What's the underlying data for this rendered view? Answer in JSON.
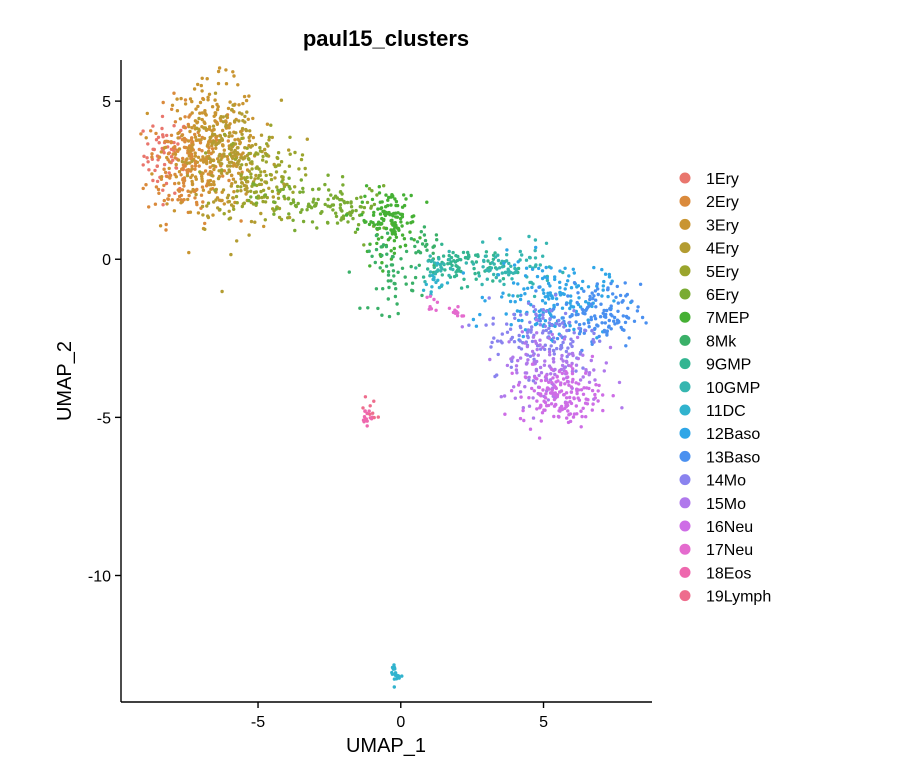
{
  "chart_data": {
    "type": "scatter",
    "title": "paul15_clusters",
    "xlabel": "UMAP_1",
    "ylabel": "UMAP_2",
    "xlim": [
      -9.8,
      8.8
    ],
    "ylim": [
      -14.0,
      6.3
    ],
    "x_ticks": [
      -5,
      0,
      5
    ],
    "y_ticks": [
      5,
      0,
      -5,
      -10
    ],
    "x_tick_labels": [
      "-5",
      "0",
      "5"
    ],
    "y_tick_labels": [
      "5",
      "0",
      "-5",
      "-10"
    ],
    "grid": false,
    "legend_position": "right",
    "series": [
      {
        "name": "1Ery",
        "color": "#E9766D",
        "clusters": [
          {
            "cx": -8.2,
            "cy": 3.3,
            "sx": 0.4,
            "sy": 0.6,
            "n": 60
          }
        ]
      },
      {
        "name": "2Ery",
        "color": "#DA8A3C",
        "clusters": [
          {
            "cx": -7.5,
            "cy": 3.0,
            "sx": 0.7,
            "sy": 0.9,
            "n": 180
          }
        ]
      },
      {
        "name": "3Ery",
        "color": "#C99531",
        "clusters": [
          {
            "cx": -6.6,
            "cy": 3.6,
            "sx": 0.8,
            "sy": 1.0,
            "n": 260
          }
        ]
      },
      {
        "name": "4Ery",
        "color": "#B39C31",
        "clusters": [
          {
            "cx": -5.8,
            "cy": 3.0,
            "sx": 0.8,
            "sy": 1.0,
            "n": 180
          }
        ]
      },
      {
        "name": "5Ery",
        "color": "#9AA52D",
        "clusters": [
          {
            "cx": -5.0,
            "cy": 2.6,
            "sx": 0.7,
            "sy": 0.7,
            "n": 120
          }
        ]
      },
      {
        "name": "6Ery",
        "color": "#7AAB33",
        "clusters": [
          {
            "cx": -3.3,
            "cy": 1.8,
            "sx": 0.9,
            "sy": 0.4,
            "n": 80
          },
          {
            "cx": -1.6,
            "cy": 1.5,
            "sx": 0.6,
            "sy": 0.4,
            "n": 50
          }
        ]
      },
      {
        "name": "7MEP",
        "color": "#45B034",
        "clusters": [
          {
            "cx": -0.4,
            "cy": 1.2,
            "sx": 0.5,
            "sy": 0.5,
            "n": 130
          }
        ]
      },
      {
        "name": "8Mk",
        "color": "#3AB068",
        "clusters": [
          {
            "cx": -0.3,
            "cy": -0.5,
            "sx": 0.4,
            "sy": 0.6,
            "n": 50
          },
          {
            "cx": 0.9,
            "cy": 0.3,
            "sx": 0.3,
            "sy": 0.3,
            "n": 25
          }
        ]
      },
      {
        "name": "9GMP",
        "color": "#33B591",
        "clusters": [
          {
            "cx": 2.2,
            "cy": -0.2,
            "sx": 0.7,
            "sy": 0.3,
            "n": 80
          }
        ]
      },
      {
        "name": "10GMP",
        "color": "#36B6B0",
        "clusters": [
          {
            "cx": 3.8,
            "cy": -0.3,
            "sx": 0.8,
            "sy": 0.35,
            "n": 80
          },
          {
            "cx": 1.2,
            "cy": -0.3,
            "sx": 0.3,
            "sy": 0.3,
            "n": 20
          }
        ]
      },
      {
        "name": "11DC",
        "color": "#31B3CE",
        "clusters": [
          {
            "cx": -0.2,
            "cy": -13.1,
            "sx": 0.08,
            "sy": 0.2,
            "n": 18
          },
          {
            "cx": 1.2,
            "cy": -0.9,
            "sx": 0.3,
            "sy": 0.3,
            "n": 15
          }
        ]
      },
      {
        "name": "12Baso",
        "color": "#2FA6E7",
        "clusters": [
          {
            "cx": 5.2,
            "cy": -1.2,
            "sx": 1.0,
            "sy": 0.6,
            "n": 160
          }
        ]
      },
      {
        "name": "13Baso",
        "color": "#4A90F0",
        "clusters": [
          {
            "cx": 6.8,
            "cy": -1.8,
            "sx": 0.8,
            "sy": 0.5,
            "n": 140
          }
        ]
      },
      {
        "name": "14Mo",
        "color": "#8A83EF",
        "clusters": [
          {
            "cx": 5.0,
            "cy": -2.4,
            "sx": 1.0,
            "sy": 0.6,
            "n": 130
          }
        ]
      },
      {
        "name": "15Mo",
        "color": "#B079EC",
        "clusters": [
          {
            "cx": 5.2,
            "cy": -3.4,
            "sx": 0.9,
            "sy": 0.6,
            "n": 130
          }
        ]
      },
      {
        "name": "16Neu",
        "color": "#CE6DE6",
        "clusters": [
          {
            "cx": 5.6,
            "cy": -4.3,
            "sx": 0.7,
            "sy": 0.45,
            "n": 160
          }
        ]
      },
      {
        "name": "17Neu",
        "color": "#E46BCE",
        "clusters": [
          {
            "cx": 1.9,
            "cy": -1.7,
            "sx": 0.12,
            "sy": 0.15,
            "n": 10
          },
          {
            "cx": 1.1,
            "cy": -1.4,
            "sx": 0.1,
            "sy": 0.15,
            "n": 8
          }
        ]
      },
      {
        "name": "18Eos",
        "color": "#EE68AE",
        "clusters": [
          {
            "cx": -1.2,
            "cy": -5.0,
            "sx": 0.1,
            "sy": 0.12,
            "n": 14
          }
        ]
      },
      {
        "name": "19Lymph",
        "color": "#EE6D8D",
        "clusters": [
          {
            "cx": -1.1,
            "cy": -4.8,
            "sx": 0.15,
            "sy": 0.3,
            "n": 8
          }
        ]
      }
    ]
  }
}
